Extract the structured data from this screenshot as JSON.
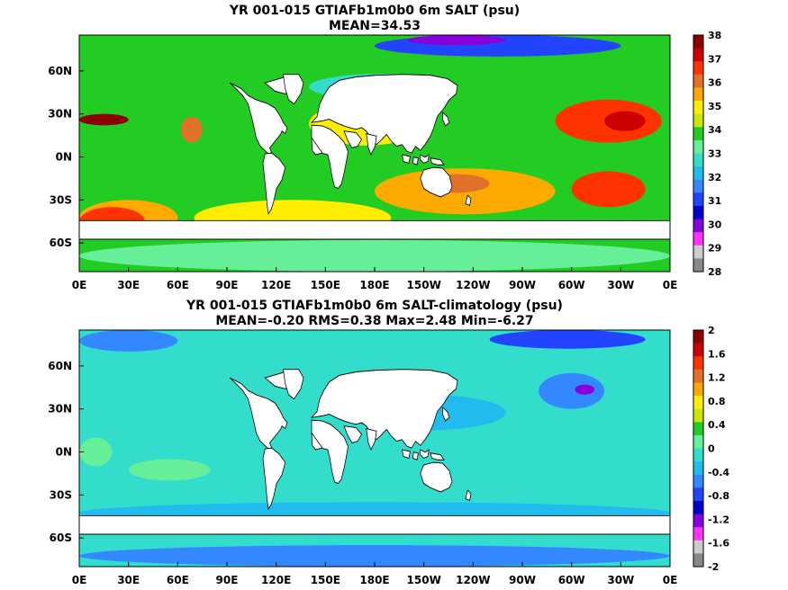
{
  "chart_data": [
    {
      "type": "heatmap",
      "title": "YR 001-015 GTIAFb1m0b0 6m SALT (psu)",
      "subtitle": "MEAN=34.53",
      "x_tick_labels": [
        "0E",
        "30E",
        "60E",
        "90E",
        "120E",
        "150E",
        "180E",
        "150W",
        "120W",
        "90W",
        "60W",
        "30W",
        "0E"
      ],
      "y_tick_labels": [
        "60N",
        "30N",
        "0N",
        "30S",
        "60S"
      ],
      "y_tick_values": [
        60,
        30,
        0,
        -30,
        -60
      ],
      "x_range": [
        0,
        360
      ],
      "y_range": [
        -80,
        85
      ],
      "colorbar": {
        "labels": [
          "38",
          "37",
          "36",
          "35",
          "34",
          "33",
          "32",
          "31",
          "30",
          "29",
          "28"
        ],
        "colors": [
          "#8b0000",
          "#cc0000",
          "#ff3300",
          "#e0702a",
          "#ffaa00",
          "#ffee00",
          "#c8e800",
          "#22cc22",
          "#66ee99",
          "#33ddcc",
          "#22bbee",
          "#3388ff",
          "#2244ff",
          "#0000cc",
          "#8800dd",
          "#ff33ff",
          "#cccccc",
          "#888888"
        ]
      },
      "background": "#22cc22",
      "regions": [
        {
          "lon": [
            70,
            190
          ],
          "lat": [
            -55,
            -30
          ],
          "value": "35",
          "color": "#ffee00"
        },
        {
          "lon": [
            180,
            290
          ],
          "lat": [
            -40,
            -8
          ],
          "value": "35.5",
          "color": "#ffaa00"
        },
        {
          "lon": [
            140,
            210
          ],
          "lat": [
            8,
            38
          ],
          "value": "35",
          "color": "#ffee00"
        },
        {
          "lon": [
            210,
            250
          ],
          "lat": [
            -25,
            -12
          ],
          "value": "36.5",
          "color": "#e0702a"
        },
        {
          "lon": [
            300,
            345
          ],
          "lat": [
            -35,
            -10
          ],
          "value": "36.5",
          "color": "#ff3300"
        },
        {
          "lon": [
            0,
            60
          ],
          "lat": [
            -55,
            -30
          ],
          "value": "35.5",
          "color": "#ffaa00"
        },
        {
          "lon": [
            0,
            40
          ],
          "lat": [
            -55,
            -35
          ],
          "value": "35.5",
          "color": "#ff3300"
        },
        {
          "lon": [
            62,
            75
          ],
          "lat": [
            10,
            28
          ],
          "value": "36.5",
          "color": "#e0702a"
        },
        {
          "lon": [
            290,
            355
          ],
          "lat": [
            10,
            40
          ],
          "value": "37",
          "color": "#ff3300"
        },
        {
          "lon": [
            320,
            345
          ],
          "lat": [
            18,
            32
          ],
          "value": "37.5",
          "color": "#cc0000"
        },
        {
          "lon": [
            0,
            360
          ],
          "lat": [
            -80,
            -58
          ],
          "value": "34",
          "color": "#66ee99"
        },
        {
          "lon": [
            140,
            230
          ],
          "lat": [
            40,
            58
          ],
          "value": "33",
          "color": "#33ddcc"
        },
        {
          "lon": [
            180,
            330
          ],
          "lat": [
            70,
            85
          ],
          "value": "30",
          "color": "#2244ff"
        },
        {
          "lon": [
            200,
            260
          ],
          "lat": [
            78,
            85
          ],
          "value": "29",
          "color": "#8800dd"
        },
        {
          "lon": [
            0,
            30
          ],
          "lat": [
            22,
            30
          ],
          "value": "38",
          "color": "#8b0000"
        }
      ]
    },
    {
      "type": "heatmap",
      "title": "YR 001-015 GTIAFb1m0b0 6m SALT-climatology (psu)",
      "subtitle": "MEAN=-0.20   RMS=0.38   Max=2.48   Min=-6.27",
      "x_tick_labels": [
        "0E",
        "30E",
        "60E",
        "90E",
        "120E",
        "150E",
        "180E",
        "150W",
        "120W",
        "90W",
        "60W",
        "30W",
        "0E"
      ],
      "y_tick_labels": [
        "60N",
        "30N",
        "0N",
        "30S",
        "60S"
      ],
      "y_tick_values": [
        60,
        30,
        0,
        -30,
        -60
      ],
      "x_range": [
        0,
        360
      ],
      "y_range": [
        -80,
        85
      ],
      "colorbar": {
        "labels": [
          "2",
          "1.6",
          "1.2",
          "0.8",
          "0.4",
          "0",
          "-0.4",
          "-0.8",
          "-1.2",
          "-1.6",
          "-2"
        ],
        "colors": [
          "#8b0000",
          "#cc0000",
          "#ff3300",
          "#e0702a",
          "#ffaa00",
          "#ffee00",
          "#c8e800",
          "#22cc22",
          "#66ee99",
          "#33ddcc",
          "#22bbee",
          "#3388ff",
          "#2244ff",
          "#0000cc",
          "#8800dd",
          "#ff33ff",
          "#cccccc",
          "#888888"
        ]
      },
      "background": "#33ddcc",
      "regions": [
        {
          "lon": [
            0,
            360
          ],
          "lat": [
            -50,
            -35
          ],
          "value": "-0.3",
          "color": "#22bbee"
        },
        {
          "lon": [
            160,
            260
          ],
          "lat": [
            15,
            40
          ],
          "value": "-0.3",
          "color": "#22bbee"
        },
        {
          "lon": [
            30,
            80
          ],
          "lat": [
            -20,
            -5
          ],
          "value": "0.2",
          "color": "#66ee99"
        },
        {
          "lon": [
            0,
            20
          ],
          "lat": [
            -10,
            10
          ],
          "value": "0.2",
          "color": "#66ee99"
        },
        {
          "lon": [
            280,
            320
          ],
          "lat": [
            30,
            55
          ],
          "value": "-0.9",
          "color": "#3388ff"
        },
        {
          "lon": [
            302,
            314
          ],
          "lat": [
            40,
            47
          ],
          "value": "-1.3",
          "color": "#8800dd"
        },
        {
          "lon": [
            0,
            360
          ],
          "lat": [
            -80,
            -65
          ],
          "value": "-0.6",
          "color": "#3388ff"
        },
        {
          "lon": [
            0,
            60
          ],
          "lat": [
            70,
            85
          ],
          "value": "-0.9",
          "color": "#3388ff"
        },
        {
          "lon": [
            250,
            345
          ],
          "lat": [
            72,
            85
          ],
          "value": "-1.0",
          "color": "#2244ff"
        }
      ]
    }
  ]
}
